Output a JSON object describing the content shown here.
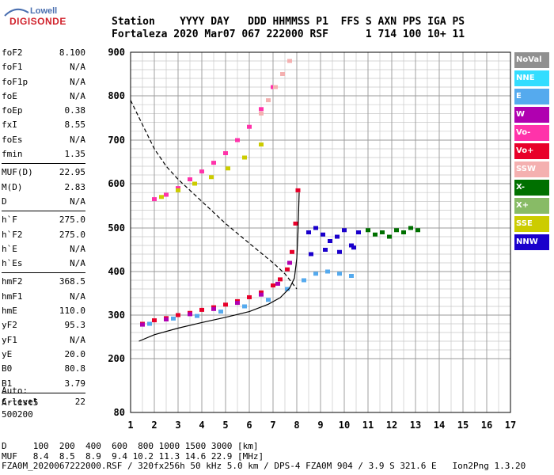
{
  "logo": {
    "line1": "Lowell",
    "line2": "DIGISONDE"
  },
  "header": {
    "row1": "Station    YYYY DAY   DDD HHMMSS P1  FFS S AXN PPS IGA PS",
    "row2": "Fortaleza 2020 Mar07 067 222000 RSF      1 714 100 10+ 11"
  },
  "params": {
    "group1": [
      {
        "k": "foF2",
        "v": "8.100"
      },
      {
        "k": "foF1",
        "v": "N/A"
      },
      {
        "k": "foF1p",
        "v": "N/A"
      },
      {
        "k": "foE",
        "v": "N/A"
      },
      {
        "k": "foEp",
        "v": "0.38"
      },
      {
        "k": "fxI",
        "v": "8.55"
      },
      {
        "k": "foEs",
        "v": "N/A"
      },
      {
        "k": "fmin",
        "v": "1.35"
      }
    ],
    "group2": [
      {
        "k": "MUF(D)",
        "v": "22.95"
      },
      {
        "k": "M(D)",
        "v": "2.83"
      },
      {
        "k": "D",
        "v": "N/A"
      }
    ],
    "group3": [
      {
        "k": "h`F",
        "v": "275.0"
      },
      {
        "k": "h`F2",
        "v": "275.0"
      },
      {
        "k": "h`E",
        "v": "N/A"
      },
      {
        "k": "h`Es",
        "v": "N/A"
      }
    ],
    "group4": [
      {
        "k": "hmF2",
        "v": "368.5"
      },
      {
        "k": "hmF1",
        "v": "N/A"
      },
      {
        "k": "hmE",
        "v": "110.0"
      },
      {
        "k": "yF2",
        "v": "95.3"
      },
      {
        "k": "yF1",
        "v": "N/A"
      },
      {
        "k": "yE",
        "v": "20.0"
      },
      {
        "k": "B0",
        "v": "80.8"
      },
      {
        "k": "B1",
        "v": "3.79"
      }
    ],
    "group5": [
      {
        "k": "C-level",
        "v": "22"
      }
    ]
  },
  "auto": {
    "l1": "Auto:",
    "l2": "Artist5",
    "l3": "500200"
  },
  "legend": [
    {
      "label": "NoVal",
      "color": "#909090"
    },
    {
      "label": "NNE",
      "color": "#33ddff"
    },
    {
      "label": "E",
      "color": "#55aaee"
    },
    {
      "label": "W",
      "color": "#b000b0"
    },
    {
      "label": "Vo-",
      "color": "#ff33aa"
    },
    {
      "label": "Vo+",
      "color": "#e8002a"
    },
    {
      "label": "SSW",
      "color": "#f4b0b0"
    },
    {
      "label": "X-",
      "color": "#007000"
    },
    {
      "label": "X+",
      "color": "#88bb66"
    },
    {
      "label": "SSE",
      "color": "#cccc00"
    },
    {
      "label": "NNW",
      "color": "#1a00cc"
    }
  ],
  "bottom": {
    "row1": "D     100  200  400  600  800 1000 1500 3000 [km]",
    "row2": "MUF   8.4  8.5  8.9  9.4 10.2 11.3 14.6 22.9 [MHz]",
    "row3": "FZA0M_2020067222000.RSF / 320fx256h 50 kHz 5.0 km / DPS-4 FZA0M 904 / 3.9 S 321.6 E   Ion2Png 1.3.20"
  },
  "chart_data": {
    "type": "scatter",
    "xlim": [
      1,
      17
    ],
    "ylim": [
      80,
      900
    ],
    "x_ticks": [
      1,
      2,
      3,
      4,
      5,
      6,
      7,
      8,
      9,
      10,
      11,
      12,
      13,
      14,
      15,
      16,
      17
    ],
    "y_ticks": [
      80,
      200,
      300,
      400,
      500,
      600,
      700,
      800,
      900
    ],
    "grid": true,
    "series": [
      {
        "name": "Vo+",
        "color": "#e8002a",
        "x": [
          1.5,
          2.0,
          2.5,
          3.0,
          3.5,
          4.0,
          4.5,
          5.0,
          5.5,
          6.0,
          6.5,
          7.0,
          7.3,
          7.6,
          7.8,
          7.95,
          8.05
        ],
        "y": [
          280,
          288,
          293,
          300,
          305,
          312,
          318,
          324,
          332,
          341,
          352,
          368,
          382,
          405,
          445,
          510,
          585
        ]
      },
      {
        "name": "W",
        "x": [
          1.5,
          2.5,
          3.5,
          4.5,
          5.5,
          6.5,
          7.2,
          7.7
        ],
        "y": [
          278,
          290,
          302,
          314,
          328,
          347,
          372,
          420
        ]
      },
      {
        "name": "E",
        "x": [
          1.8,
          2.8,
          3.8,
          4.8,
          5.8,
          6.8,
          7.6,
          8.3,
          8.8,
          9.3,
          9.8,
          10.3
        ],
        "y": [
          280,
          292,
          298,
          308,
          320,
          335,
          360,
          380,
          395,
          400,
          395,
          390
        ]
      },
      {
        "name": "NNW",
        "x": [
          8.5,
          8.8,
          9.1,
          9.4,
          9.7,
          10.0,
          10.3,
          10.6,
          8.6,
          9.2,
          9.8,
          10.4
        ],
        "y": [
          490,
          500,
          485,
          470,
          480,
          495,
          460,
          490,
          440,
          450,
          445,
          455
        ]
      },
      {
        "name": "X-",
        "x": [
          11.0,
          11.3,
          11.6,
          11.9,
          12.2,
          12.5,
          12.8,
          13.1
        ],
        "y": [
          495,
          485,
          490,
          480,
          495,
          490,
          500,
          495
        ]
      },
      {
        "name": "Vo-",
        "x": [
          2.0,
          2.5,
          3.0,
          3.5,
          4.0,
          4.5,
          5.0,
          5.5,
          6.0,
          6.5,
          7.0
        ],
        "y": [
          565,
          575,
          590,
          610,
          628,
          648,
          670,
          700,
          730,
          770,
          820
        ]
      },
      {
        "name": "SSW",
        "x": [
          6.5,
          6.8,
          7.1,
          7.4,
          7.7
        ],
        "y": [
          760,
          790,
          820,
          850,
          880
        ]
      },
      {
        "name": "SSE",
        "x": [
          2.3,
          3.0,
          3.7,
          4.4,
          5.1,
          5.8,
          6.5
        ],
        "y": [
          570,
          585,
          600,
          615,
          635,
          660,
          690
        ]
      }
    ],
    "profile_solid": {
      "x": [
        1.35,
        2.0,
        3.0,
        4.0,
        5.0,
        6.0,
        6.8,
        7.3,
        7.7,
        7.9,
        8.0,
        8.05,
        8.1
      ],
      "y": [
        240,
        255,
        270,
        283,
        295,
        308,
        325,
        340,
        362,
        385,
        430,
        490,
        580
      ]
    },
    "profile_dashed": {
      "x": [
        1.0,
        1.5,
        2.0,
        2.5,
        3.0,
        3.5,
        4.0,
        5.0,
        6.0,
        7.0,
        7.5,
        8.0
      ],
      "y": [
        790,
        735,
        680,
        640,
        610,
        585,
        560,
        510,
        465,
        420,
        395,
        360
      ]
    }
  }
}
